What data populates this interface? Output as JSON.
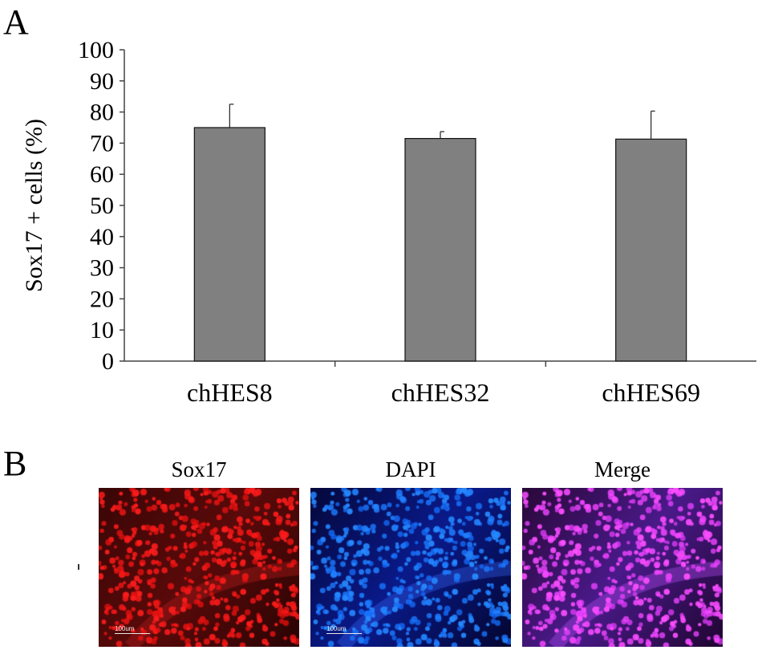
{
  "panels": {
    "a_letter": "A",
    "b_letter": "B"
  },
  "chart_data": {
    "type": "bar",
    "title": "",
    "xlabel": "",
    "ylabel": "Sox17 +  cells (%)",
    "ylim": [
      0,
      100
    ],
    "yticks": [
      0,
      10,
      20,
      30,
      40,
      50,
      60,
      70,
      80,
      90,
      100
    ],
    "categories": [
      "chHES8",
      "chHES32",
      "chHES69"
    ],
    "values": [
      75,
      71.5,
      71.3
    ],
    "error_upper": [
      7.5,
      2.2,
      9
    ],
    "bar_color": "#808080",
    "grid": false
  },
  "micrographs": [
    {
      "label": "Sox17",
      "channel": "red",
      "scale_text": "100um"
    },
    {
      "label": "DAPI",
      "channel": "blue",
      "scale_text": "100um"
    },
    {
      "label": "Merge",
      "channel": "merge",
      "scale_text": ""
    }
  ]
}
